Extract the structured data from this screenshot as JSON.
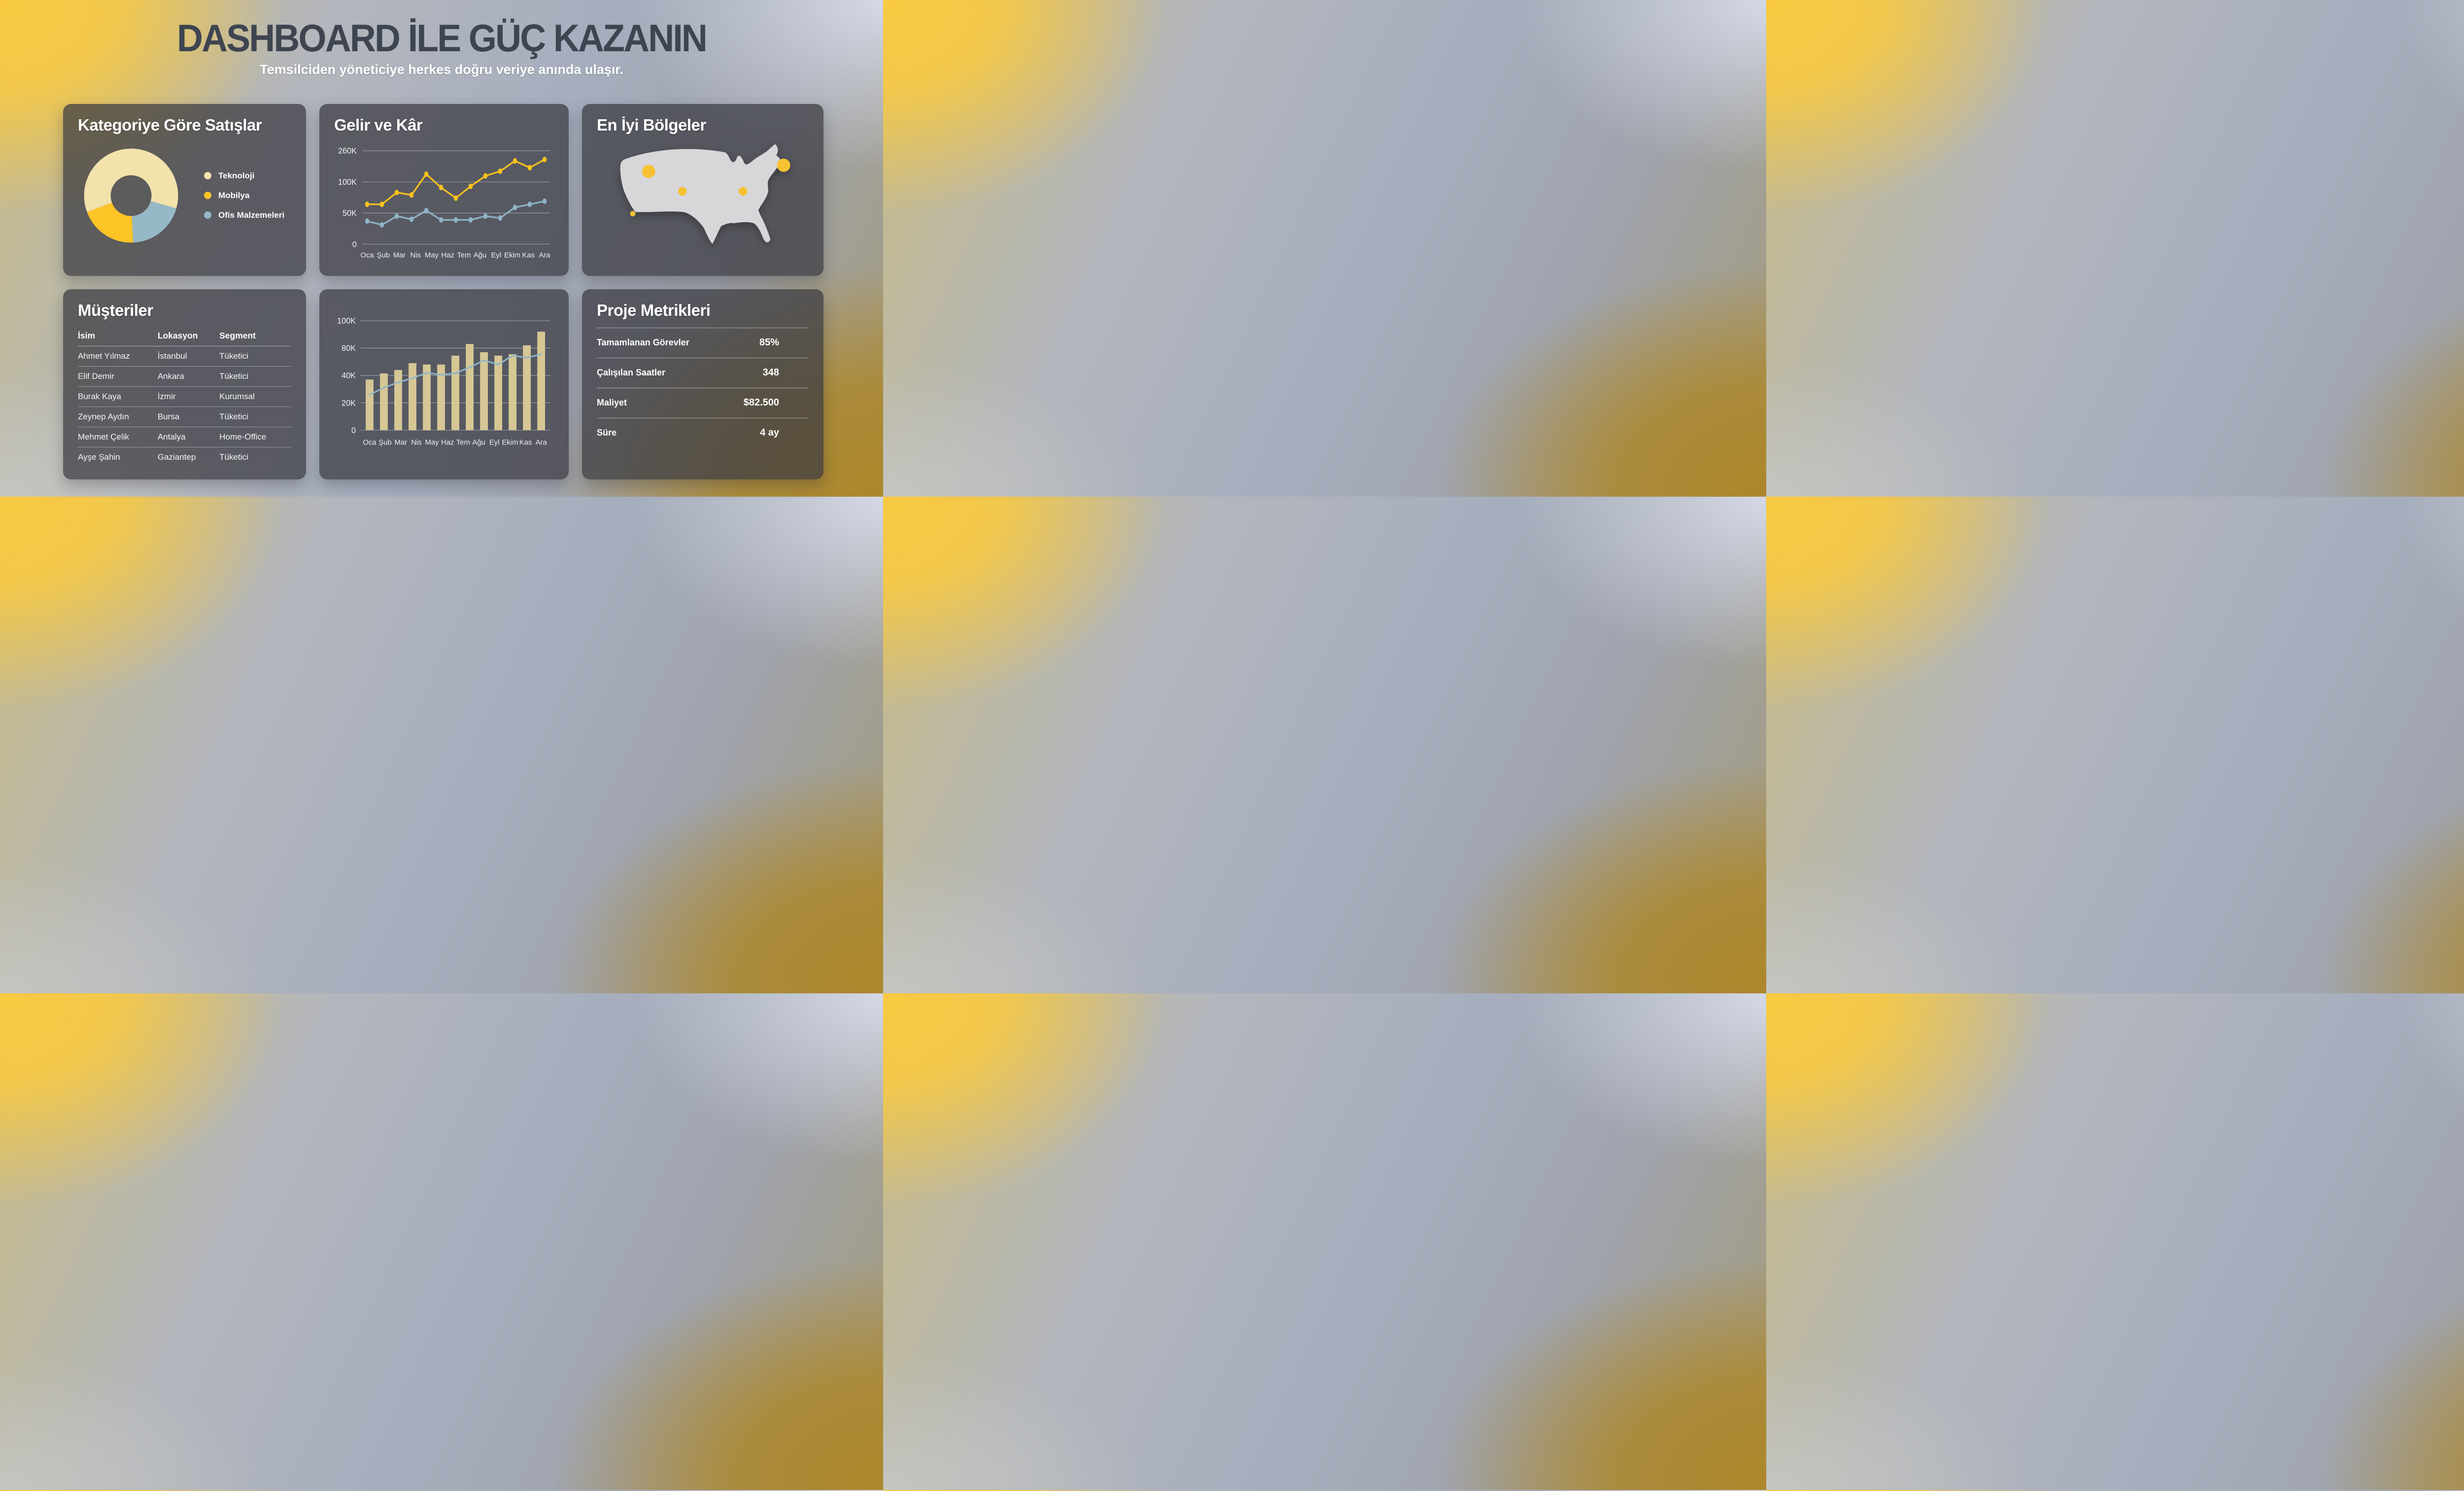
{
  "header": {
    "title": "DASHBOARD İLE GÜÇ KAZANIN",
    "subtitle": "Temsilciden yöneticiye herkes doğru veriye anında ulaşır."
  },
  "colors": {
    "title_dark": "#3E4550",
    "accent_yellow": "#FCC21B",
    "cream": "#F2E2AC",
    "steel_blue": "#8FB4C5",
    "bar_tan": "#D6C795",
    "map_fill": "#D7D7DA",
    "map_dot": "#F6C231"
  },
  "chart_data": [
    {
      "id": "category-donut",
      "type": "pie",
      "title": "Kategoriye Göre Satışlar",
      "labels": [
        "Teknoloji",
        "Mobilya",
        "Ofis Malzemeleri"
      ],
      "values_pct": [
        60,
        20,
        20
      ],
      "colors": [
        "#F2E2AC",
        "#FDC425",
        "#97B8C6"
      ],
      "donut": true,
      "start_angle_clock_deg": 250,
      "draw_order_clockwise": [
        "Teknoloji",
        "Ofis Malzemeleri",
        "Mobilya"
      ],
      "legend_position": "right"
    },
    {
      "id": "revenue-profit-line",
      "type": "line",
      "title": "Gelir ve Kâr",
      "x_labels": [
        "Oca",
        "Şub",
        "Mar",
        "Nis",
        "May",
        "Haz",
        "Tem",
        "Ağu",
        "Eyl",
        "Ekim",
        "Kas",
        "Ara"
      ],
      "y_ticks": [
        "260K",
        "100K",
        "50K",
        "0"
      ],
      "y_tick_values_k": [
        260,
        100,
        50,
        0
      ],
      "points_per_series": 13,
      "series": [
        {
          "name": "Gelir",
          "color": "#FCC21B",
          "values_k": [
            64,
            64,
            83,
            79,
            140,
            91,
            74,
            93,
            131,
            155,
            208,
            173,
            215
          ]
        },
        {
          "name": "Kâr",
          "color": "#8FB4C5",
          "values_k": [
            37,
            31,
            45,
            40,
            54,
            39,
            39,
            39,
            45,
            42,
            59,
            64,
            69
          ]
        }
      ],
      "grid": true,
      "legend_position": "none"
    },
    {
      "id": "top-regions-map",
      "type": "map",
      "title": "En İyi Bölgeler",
      "region": "USA",
      "dots": [
        {
          "name": "northwest",
          "x_pct": 23.5,
          "y_pct": 25,
          "size": "large"
        },
        {
          "name": "central",
          "x_pct": 40.5,
          "y_pct": 41,
          "size": "medium"
        },
        {
          "name": "west-coast",
          "x_pct": 15.5,
          "y_pct": 59,
          "size": "small"
        },
        {
          "name": "great-lakes",
          "x_pct": 71.0,
          "y_pct": 41,
          "size": "medium"
        },
        {
          "name": "northeast",
          "x_pct": 91.5,
          "y_pct": 20,
          "size": "large"
        }
      ]
    },
    {
      "id": "monthly-bars",
      "type": "bar",
      "title": "",
      "x_labels": [
        "Oca",
        "Şub",
        "Mar",
        "Nis",
        "May",
        "Haz",
        "Tem",
        "Ağu",
        "Eyl",
        "Ekim",
        "Kas",
        "Ara"
      ],
      "y_ticks": [
        "100K",
        "80K",
        "40K",
        "20K",
        "0"
      ],
      "y_tick_values_k": [
        100,
        80,
        40,
        20,
        0
      ],
      "bar_color": "#D6C795",
      "bar_values_k": [
        37,
        43,
        48,
        58,
        56,
        56,
        69,
        83,
        74,
        69,
        71,
        82,
        92
      ],
      "line_overlay": {
        "color": "#8FB6C9",
        "values_k": [
          26,
          31,
          35,
          38,
          44,
          41,
          43,
          52,
          62,
          56,
          69,
          66,
          71
        ]
      },
      "grid": true
    }
  ],
  "customers": {
    "title": "Müşteriler",
    "columns": [
      "İsim",
      "Lokasyon",
      "Segment"
    ],
    "rows": [
      [
        "Ahmet Yılmaz",
        "İstanbul",
        "Tüketici"
      ],
      [
        "Elif Demir",
        "Ankara",
        "Tüketici"
      ],
      [
        "Burak Kaya",
        "İzmir",
        "Kurumsal"
      ],
      [
        "Zeynep Aydın",
        "Bursa",
        "Tüketici"
      ],
      [
        "Mehmet Çelik",
        "Antalya",
        "Home-Office"
      ],
      [
        "Ayşe Şahin",
        "Gaziantep",
        "Tüketici"
      ]
    ]
  },
  "metrics": {
    "title": "Proje Metrikleri",
    "items": [
      {
        "label": "Tamamlanan Görevler",
        "value": "85%"
      },
      {
        "label": "Çalışılan Saatler",
        "value": "348"
      },
      {
        "label": "Maliyet",
        "value": "$82.500"
      },
      {
        "label": "Süre",
        "value": "4 ay"
      }
    ]
  }
}
